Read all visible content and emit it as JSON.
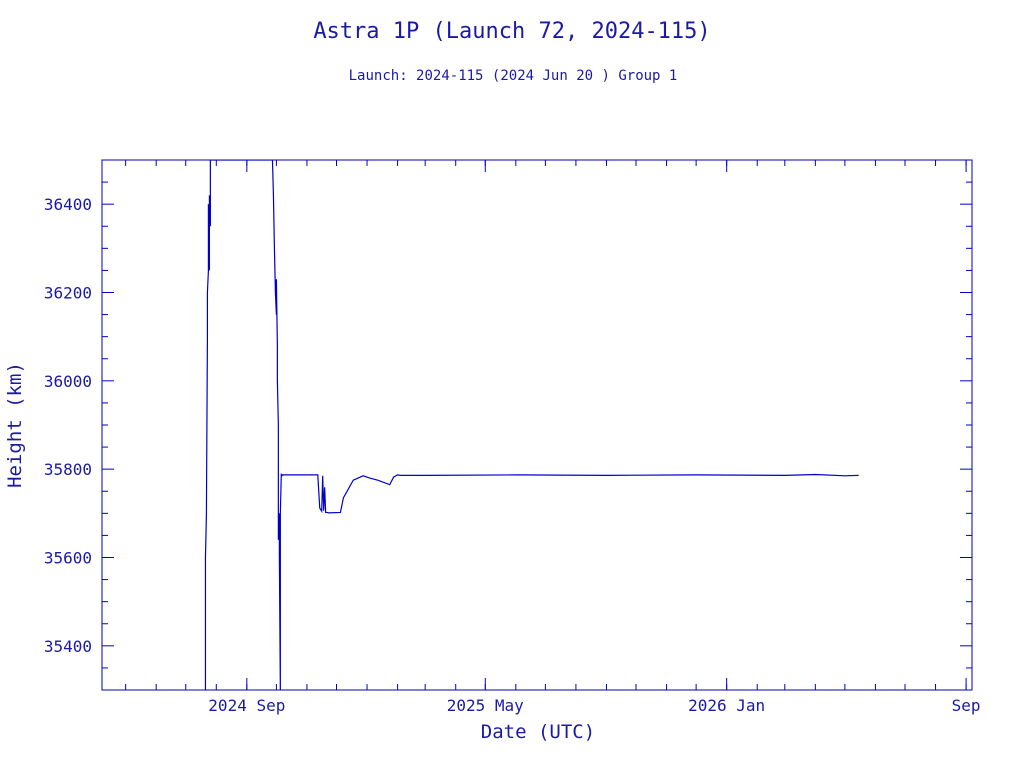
{
  "chart_data": {
    "type": "line",
    "title": "Astra 1P (Launch 72, 2024-115)",
    "subtitle": "Launch: 2024-115  (2024 Jun 20 )  Group 1",
    "xlabel": "Date (UTC)",
    "ylabel": "Height (km)",
    "xlim": [
      "2024-04-07",
      "2026-09-07"
    ],
    "ylim": [
      35300,
      36500
    ],
    "x_ticks": [
      {
        "date": "2024-09-01",
        "label": "2024 Sep"
      },
      {
        "date": "2025-05-01",
        "label": "2025 May"
      },
      {
        "date": "2026-01-01",
        "label": "2026 Jan"
      },
      {
        "date": "2026-09-01",
        "label": "Sep"
      }
    ],
    "y_ticks": [
      35400,
      35600,
      35800,
      36000,
      36200,
      36400
    ],
    "grid": false,
    "legend": "none",
    "color": "#0000cc",
    "series": [
      {
        "x": [
          "2024-07-21",
          "2024-07-21",
          "2024-07-22",
          "2024-07-22",
          "2024-07-23",
          "2024-07-23",
          "2024-07-24",
          "2024-07-24",
          "2024-07-25",
          "2024-07-25",
          "2024-07-26",
          "2024-07-26",
          "2024-07-27",
          "2024-07-27",
          "2024-07-28",
          "2024-07-28",
          "2024-07-28",
          "2024-09-26",
          "2024-09-27",
          "2024-09-28",
          "2024-09-29",
          "2024-09-30",
          "2024-10-01",
          "2024-10-01",
          "2024-10-02",
          "2024-10-02",
          "2024-10-03",
          "2024-10-03",
          "2024-10-04",
          "2024-10-04",
          "2024-10-05",
          "2024-10-05",
          "2024-10-06",
          "2024-10-06",
          "2024-10-06",
          "2024-10-07",
          "2024-10-07",
          "2024-10-08",
          "2024-10-10",
          "2024-11-12",
          "2024-11-14",
          "2024-11-16",
          "2024-11-17",
          "2024-11-18",
          "2024-11-19",
          "2024-11-20",
          "2024-11-21",
          "2024-11-23",
          "2024-12-05",
          "2024-12-08",
          "2024-12-18",
          "2024-12-28",
          "2025-01-05",
          "2025-01-12",
          "2025-01-24",
          "2025-01-28",
          "2025-02-01",
          "2025-02-04",
          "2025-03-01",
          "2025-06-01",
          "2025-09-01",
          "2025-12-01",
          "2026-03-01",
          "2026-04-01",
          "2026-05-01",
          "2026-05-15"
        ],
        "y": [
          35300,
          35600,
          35700,
          35710,
          36100,
          36200,
          36250,
          36400,
          36250,
          36420,
          36350,
          36500,
          36500,
          36500,
          36500,
          36500,
          36500,
          36500,
          36500,
          36420,
          36300,
          36200,
          36150,
          36230,
          36080,
          36000,
          35900,
          35640,
          35700,
          35610,
          35300,
          35700,
          35790,
          35785,
          35788,
          35787,
          35786,
          35787,
          35787,
          35787,
          35712,
          35705,
          35785,
          35706,
          35759,
          35702,
          35702,
          35701,
          35702,
          35735,
          35775,
          35785,
          35779,
          35775,
          35765,
          35782,
          35787,
          35786,
          35786,
          35787,
          35786,
          35787,
          35786,
          35788,
          35785,
          35786
        ]
      }
    ]
  }
}
